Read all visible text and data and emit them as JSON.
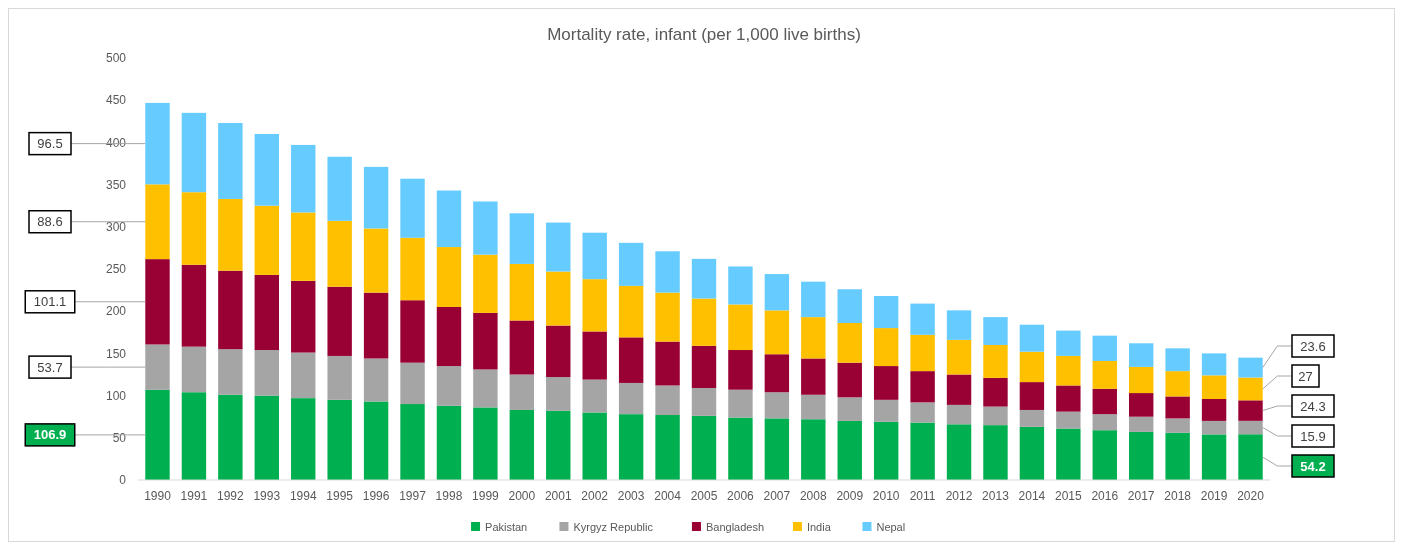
{
  "chart_data": {
    "type": "bar",
    "stacked": true,
    "title": "Mortality rate, infant (per 1,000 live births)",
    "categories": [
      "1990",
      "1991",
      "1992",
      "1993",
      "1994",
      "1995",
      "1996",
      "1997",
      "1998",
      "1999",
      "2000",
      "2001",
      "2002",
      "2003",
      "2004",
      "2005",
      "2006",
      "2007",
      "2008",
      "2009",
      "2010",
      "2011",
      "2012",
      "2013",
      "2014",
      "2015",
      "2016",
      "2017",
      "2018",
      "2019",
      "2020"
    ],
    "series": [
      {
        "name": "Pakistan",
        "color": "#00b050",
        "values": [
          106.9,
          104,
          101,
          100,
          97,
          95,
          93,
          90,
          88,
          86,
          83,
          82,
          80,
          78,
          77,
          76,
          74,
          73,
          72,
          70,
          69,
          68,
          66,
          65,
          63,
          61,
          59,
          57,
          56,
          54,
          54.2
        ],
        "value_labels": [
          "106.9",
          null,
          null,
          null,
          null,
          null,
          null,
          null,
          null,
          null,
          null,
          null,
          null,
          null,
          null,
          null,
          null,
          null,
          null,
          null,
          null,
          null,
          null,
          null,
          null,
          null,
          null,
          null,
          null,
          null,
          "54.2"
        ]
      },
      {
        "name": "Kyrgyz Republic",
        "color": "#a5a5a5",
        "values": [
          53.7,
          54,
          54,
          54,
          54,
          52,
          51,
          49,
          47,
          45,
          42,
          40,
          39,
          37,
          35,
          33,
          33,
          31,
          29,
          28,
          26,
          24,
          23,
          22,
          20,
          20,
          19,
          18,
          17,
          16,
          15.9
        ],
        "value_labels": [
          "53.7",
          null,
          null,
          null,
          null,
          null,
          null,
          null,
          null,
          null,
          null,
          null,
          null,
          null,
          null,
          null,
          null,
          null,
          null,
          null,
          null,
          null,
          null,
          null,
          null,
          null,
          null,
          null,
          null,
          null,
          "15.9"
        ]
      },
      {
        "name": "Bangladesh",
        "color": "#990033",
        "values": [
          101.1,
          97,
          93,
          89,
          85,
          82,
          78,
          74,
          70,
          67,
          64,
          61,
          57,
          54,
          52,
          50,
          47,
          45,
          43,
          41,
          40,
          37,
          36,
          34,
          33,
          31,
          30,
          28,
          26,
          26,
          24.3
        ],
        "value_labels": [
          "101.1",
          null,
          null,
          null,
          null,
          null,
          null,
          null,
          null,
          null,
          null,
          null,
          null,
          null,
          null,
          null,
          null,
          null,
          null,
          null,
          null,
          null,
          null,
          null,
          null,
          null,
          null,
          null,
          null,
          null,
          "24.3"
        ]
      },
      {
        "name": "India",
        "color": "#ffc000",
        "values": [
          88.6,
          86,
          85,
          82,
          81,
          78,
          76,
          74,
          71,
          69,
          67,
          64,
          62,
          61,
          58,
          56,
          54,
          52,
          49,
          47,
          45,
          43,
          41,
          39,
          36,
          35,
          33,
          31,
          30,
          28,
          27
        ],
        "value_labels": [
          "88.6",
          null,
          null,
          null,
          null,
          null,
          null,
          null,
          null,
          null,
          null,
          null,
          null,
          null,
          null,
          null,
          null,
          null,
          null,
          null,
          null,
          null,
          null,
          null,
          null,
          null,
          null,
          null,
          null,
          null,
          "27"
        ]
      },
      {
        "name": "Nepal",
        "color": "#66ccff",
        "values": [
          96.5,
          94,
          90,
          85,
          80,
          76,
          73,
          70,
          67,
          63,
          60,
          58,
          55,
          51,
          49,
          47,
          45,
          43,
          42,
          40,
          38,
          37,
          35,
          33,
          32,
          30,
          30,
          28,
          27,
          26,
          23.6
        ],
        "value_labels": [
          "96.5",
          null,
          null,
          null,
          null,
          null,
          null,
          null,
          null,
          null,
          null,
          null,
          null,
          null,
          null,
          null,
          null,
          null,
          null,
          null,
          null,
          null,
          null,
          null,
          null,
          null,
          null,
          null,
          null,
          null,
          "23.6"
        ]
      }
    ],
    "ylim": [
      0,
      500
    ],
    "yticks": [
      0,
      50,
      100,
      150,
      200,
      250,
      300,
      350,
      400,
      450,
      500
    ],
    "legend": "bottom"
  }
}
